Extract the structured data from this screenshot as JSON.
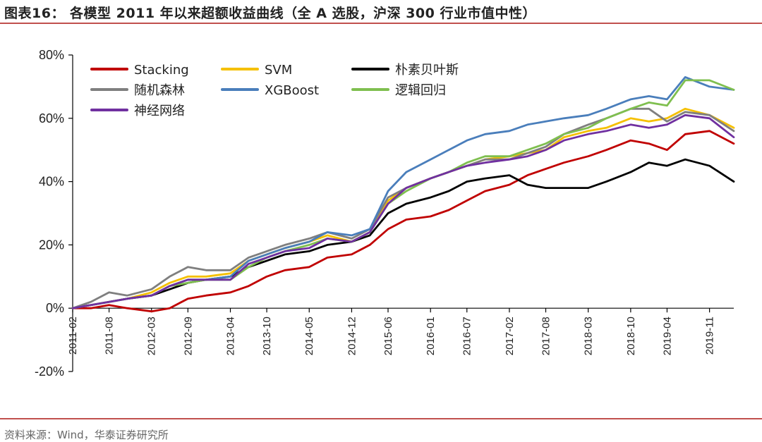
{
  "header": {
    "title": "图表16： 各模型 2011 年以来超额收益曲线（全 A 选股，沪深 300 行业市值中性）"
  },
  "footer": {
    "source": "资料来源：Wind，华泰证券研究所"
  },
  "chart_data": {
    "type": "line",
    "title": "",
    "xlabel": "",
    "ylabel": "",
    "ylim": [
      -0.2,
      0.8
    ],
    "yticks": [
      "-20%",
      "0%",
      "20%",
      "40%",
      "60%",
      "80%"
    ],
    "ytick_values": [
      -0.2,
      0,
      0.2,
      0.4,
      0.6,
      0.8
    ],
    "xticks": [
      "2011-02",
      "2011-08",
      "2012-03",
      "2012-09",
      "2013-04",
      "2013-10",
      "2014-05",
      "2014-12",
      "2015-06",
      "2016-01",
      "2016-07",
      "2017-02",
      "2017-08",
      "2018-03",
      "2018-10",
      "2019-04",
      "2019-11"
    ],
    "x_end": "2020-03",
    "legend_position": "top-left",
    "grid": false,
    "dates": [
      "2011-02",
      "2011-05",
      "2011-08",
      "2011-11",
      "2012-03",
      "2012-06",
      "2012-09",
      "2012-12",
      "2013-04",
      "2013-07",
      "2013-10",
      "2014-01",
      "2014-05",
      "2014-08",
      "2014-12",
      "2015-03",
      "2015-06",
      "2015-09",
      "2016-01",
      "2016-04",
      "2016-07",
      "2016-10",
      "2017-02",
      "2017-05",
      "2017-08",
      "2017-11",
      "2018-03",
      "2018-06",
      "2018-10",
      "2019-01",
      "2019-04",
      "2019-07",
      "2019-11",
      "2020-03"
    ],
    "series": [
      {
        "name": "Stacking",
        "color": "#c00000",
        "values": [
          0.0,
          0.0,
          0.01,
          0.0,
          -0.01,
          0.0,
          0.03,
          0.04,
          0.05,
          0.07,
          0.1,
          0.12,
          0.13,
          0.16,
          0.17,
          0.2,
          0.25,
          0.28,
          0.29,
          0.31,
          0.34,
          0.37,
          0.39,
          0.42,
          0.44,
          0.46,
          0.48,
          0.5,
          0.53,
          0.52,
          0.5,
          0.55,
          0.56,
          0.52
        ]
      },
      {
        "name": "SVM",
        "color": "#f5c000",
        "values": [
          0.0,
          0.01,
          0.02,
          0.03,
          0.05,
          0.08,
          0.1,
          0.1,
          0.11,
          0.15,
          0.17,
          0.19,
          0.21,
          0.23,
          0.21,
          0.24,
          0.34,
          0.38,
          0.41,
          0.43,
          0.45,
          0.47,
          0.48,
          0.49,
          0.5,
          0.54,
          0.56,
          0.57,
          0.6,
          0.59,
          0.6,
          0.63,
          0.61,
          0.57
        ]
      },
      {
        "name": "朴素贝叶斯",
        "color": "#000000",
        "values": [
          0.0,
          0.01,
          0.02,
          0.03,
          0.04,
          0.06,
          0.08,
          0.09,
          0.1,
          0.13,
          0.15,
          0.17,
          0.18,
          0.2,
          0.21,
          0.23,
          0.3,
          0.33,
          0.35,
          0.37,
          0.4,
          0.41,
          0.42,
          0.39,
          0.38,
          0.38,
          0.38,
          0.4,
          0.43,
          0.46,
          0.45,
          0.47,
          0.45,
          0.4
        ]
      },
      {
        "name": "随机森林",
        "color": "#7f7f7f",
        "values": [
          0.0,
          0.02,
          0.05,
          0.04,
          0.06,
          0.1,
          0.13,
          0.12,
          0.12,
          0.16,
          0.18,
          0.2,
          0.22,
          0.24,
          0.22,
          0.25,
          0.35,
          0.38,
          0.41,
          0.43,
          0.45,
          0.47,
          0.47,
          0.49,
          0.51,
          0.55,
          0.58,
          0.6,
          0.63,
          0.63,
          0.59,
          0.62,
          0.61,
          0.56
        ]
      },
      {
        "name": "XGBoost",
        "color": "#4a7ebb",
        "values": [
          0.0,
          0.01,
          0.02,
          0.03,
          0.04,
          0.07,
          0.09,
          0.09,
          0.1,
          0.15,
          0.17,
          0.19,
          0.21,
          0.24,
          0.23,
          0.25,
          0.37,
          0.43,
          0.47,
          0.5,
          0.53,
          0.55,
          0.56,
          0.58,
          0.59,
          0.6,
          0.61,
          0.63,
          0.66,
          0.67,
          0.66,
          0.73,
          0.7,
          0.69
        ]
      },
      {
        "name": "逻辑回归",
        "color": "#7fbf4f",
        "values": [
          0.0,
          0.01,
          0.02,
          0.03,
          0.04,
          0.07,
          0.08,
          0.09,
          0.09,
          0.13,
          0.16,
          0.18,
          0.2,
          0.22,
          0.21,
          0.24,
          0.33,
          0.37,
          0.41,
          0.43,
          0.46,
          0.48,
          0.48,
          0.5,
          0.52,
          0.55,
          0.57,
          0.6,
          0.63,
          0.65,
          0.64,
          0.72,
          0.72,
          0.69
        ]
      },
      {
        "name": "神经网络",
        "color": "#7030a0",
        "values": [
          0.0,
          0.01,
          0.02,
          0.03,
          0.04,
          0.07,
          0.09,
          0.09,
          0.09,
          0.14,
          0.16,
          0.18,
          0.19,
          0.22,
          0.21,
          0.24,
          0.33,
          0.38,
          0.41,
          0.43,
          0.45,
          0.46,
          0.47,
          0.48,
          0.5,
          0.53,
          0.55,
          0.56,
          0.58,
          0.57,
          0.58,
          0.61,
          0.6,
          0.54
        ]
      }
    ]
  }
}
